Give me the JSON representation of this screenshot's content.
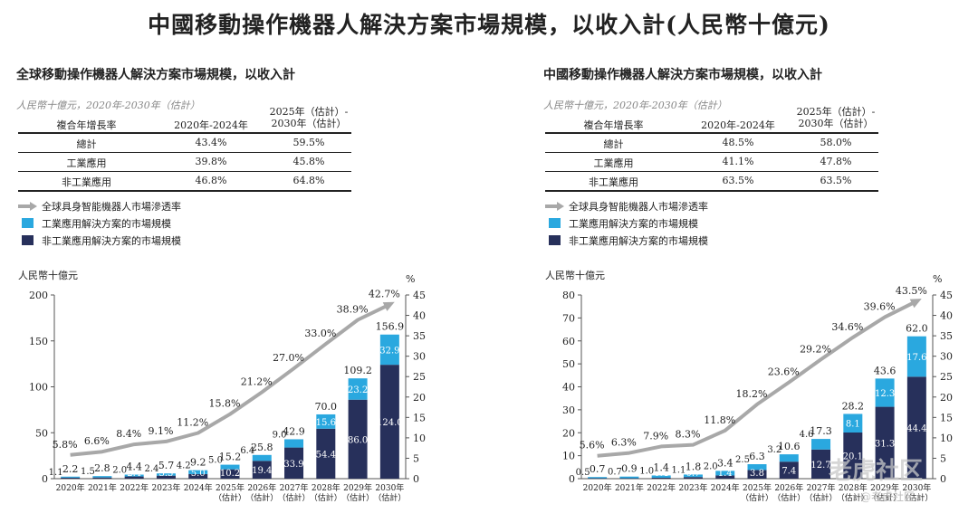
{
  "title": "中國移動操作機器人解決方案市場規模，以收入計(人民幣十億元)",
  "watermark": "@老虎社区",
  "watermark_text": "老虎社区",
  "colors": {
    "industrial": "#2AA8DF",
    "nonindustrial": "#27305B",
    "line": "#A8A8A8"
  },
  "legend": {
    "line": "全球具身智能機器人市場滲透率",
    "industrial": "工業應用解決方案的市場規模",
    "nonindustrial": "非工業應用解決方案的市場規模"
  },
  "left": {
    "title": "全球移動操作機器人解決方案市場規模，以收入計",
    "subtitle": "人民幣十億元，2020年-2030年（估計）",
    "headers": [
      "複合年增長率",
      "2020年-2024年",
      "2025年（估計）-",
      "2030年（估計）"
    ],
    "rows": [
      [
        "總計",
        "43.4%",
        "59.5%"
      ],
      [
        "工業應用",
        "39.8%",
        "45.8%"
      ],
      [
        "非工業應用",
        "46.8%",
        "64.8%"
      ]
    ],
    "unit": "人民幣十億元"
  },
  "right": {
    "title": "中國移動操作機器人解決方案市場規模，以收入計",
    "subtitle": "人民幣十億元，2020年-2030年（估計）",
    "headers": [
      "複合年增長率",
      "2020年-2024年",
      "2025年（估計）-",
      "2030年（估計）"
    ],
    "rows": [
      [
        "總計",
        "48.5%",
        "58.0%"
      ],
      [
        "工業應用",
        "41.1%",
        "47.8%"
      ],
      [
        "非工業應用",
        "63.5%",
        "63.5%"
      ]
    ],
    "unit": "人民幣十億元"
  },
  "chart_data": [
    {
      "type": "bar",
      "stacked": true,
      "title": "全球移動操作機器人解決方案市場規模，以收入計",
      "ylabel": "人民幣十億元",
      "y2label": "%",
      "ylim": [
        0,
        200
      ],
      "yticks": [
        0,
        50,
        100,
        150,
        200
      ],
      "y2lim": [
        0,
        45
      ],
      "y2ticks": [
        0,
        5,
        10,
        15,
        20,
        25,
        30,
        35,
        40,
        45
      ],
      "categories": [
        "2020年",
        "2021年",
        "2022年",
        "2023年",
        "2024年",
        "2025年|（估計）",
        "2026年|（估計）",
        "2027年|（估計）",
        "2028年|（估計）",
        "2029年|（估計）",
        "2030年|（估計）"
      ],
      "series": [
        {
          "name": "工業應用解決方案的市場規模",
          "values": [
            1.1,
            1.5,
            2.0,
            2.4,
            4.2,
            5.0,
            6.4,
            9.0,
            15.6,
            23.2,
            32.9
          ],
          "labels": [
            "1.1",
            "1.5",
            "2.0",
            "2.4",
            "4.2",
            "5.0",
            "6.4",
            "9.0",
            "15.6",
            "23.2",
            "32.9"
          ]
        },
        {
          "name": "非工業應用解決方案的市場規模",
          "values": [
            1.1,
            1.3,
            2.4,
            3.3,
            5.0,
            10.2,
            19.4,
            33.9,
            54.4,
            86.0,
            124.0
          ],
          "labels": [
            "1.1",
            "1.3",
            "2.4",
            "3.3",
            "5.0",
            "10.2",
            "19.4",
            "33.9",
            "54.4",
            "86.0",
            "124.0"
          ]
        }
      ],
      "totals": [
        "2.2",
        "2.8",
        "4.4",
        "5.7",
        "9.2",
        "15.2",
        "25.8",
        "42.9",
        "70.0",
        "109.2",
        "156.9"
      ],
      "line": {
        "name": "全球具身智能機器人市場滲透率",
        "values": [
          5.8,
          6.6,
          8.4,
          9.1,
          11.2,
          15.8,
          21.2,
          27.0,
          33.0,
          38.9,
          42.7
        ],
        "labels": [
          "5.8%",
          "6.6%",
          "8.4%",
          "9.1%",
          "11.2%",
          "15.8%",
          "21.2%",
          "27.0%",
          "33.0%",
          "38.9%",
          "42.7%"
        ]
      }
    },
    {
      "type": "bar",
      "stacked": true,
      "title": "中國移動操作機器人解決方案市場規模，以收入計",
      "ylabel": "人民幣十億元",
      "y2label": "%",
      "ylim": [
        0,
        80
      ],
      "yticks": [
        0,
        10,
        20,
        30,
        40,
        50,
        60,
        70,
        80
      ],
      "y2lim": [
        0,
        45
      ],
      "y2ticks": [
        0,
        5,
        10,
        15,
        20,
        25,
        30,
        35,
        40,
        45
      ],
      "categories": [
        "2020年",
        "2021年",
        "2022年",
        "2023年",
        "2024年",
        "2025年|（估計）",
        "2026年|（估計）",
        "2027年|（估計）",
        "2028年|（估計）",
        "2029年|（估計）",
        "2030年|（估計）"
      ],
      "series": [
        {
          "name": "工業應用解決方案的市場規模",
          "values": [
            0.5,
            0.7,
            1.0,
            1.1,
            2.0,
            2.5,
            3.2,
            4.6,
            8.1,
            12.3,
            17.6
          ],
          "labels": [
            "0.5",
            "0.7",
            "1.0",
            "1.1",
            "2.0",
            "2.5",
            "3.2",
            "4.6",
            "8.1",
            "12.3",
            "17.6"
          ]
        },
        {
          "name": "非工業應用解決方案的市場規模",
          "values": [
            0.2,
            0.2,
            0.4,
            0.7,
            1.4,
            3.8,
            7.4,
            12.7,
            20.1,
            31.3,
            44.4
          ],
          "labels": [
            "0.2",
            "0.2",
            "0.4",
            "0.7",
            "1.4",
            "3.8",
            "7.4",
            "12.7",
            "20.1",
            "31.3",
            "44.4"
          ]
        }
      ],
      "totals": [
        "0.7",
        "0.9",
        "1.4",
        "1.8",
        "3.4",
        "6.3",
        "10.6",
        "17.3",
        "28.2",
        "43.6",
        "62.0"
      ],
      "line": {
        "name": "全球具身智能機器人市場滲透率",
        "values": [
          5.6,
          6.3,
          7.9,
          8.3,
          11.8,
          18.2,
          23.6,
          29.2,
          34.6,
          39.6,
          43.5
        ],
        "labels": [
          "5.6%",
          "6.3%",
          "7.9%",
          "8.3%",
          "11.8%",
          "18.2%",
          "23.6%",
          "29.2%",
          "34.6%",
          "39.6%",
          "43.5%"
        ]
      }
    }
  ]
}
